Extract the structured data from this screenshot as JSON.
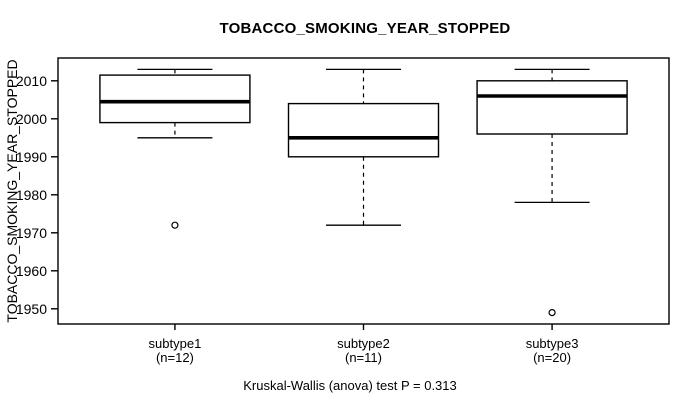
{
  "chart_data": {
    "type": "boxplot",
    "title": "TOBACCO_SMOKING_YEAR_STOPPED",
    "ylabel": "TOBACCO_SMOKING_YEAR_STOPPED",
    "footer": "Kruskal-Wallis (anova) test P = 0.313",
    "ylim": [
      1946,
      2016
    ],
    "y_ticks": [
      1950,
      1960,
      1970,
      1980,
      1990,
      2000,
      2010
    ],
    "grid": false,
    "line_color": "#000000",
    "box_fill": "#ffffff",
    "groups": [
      {
        "label": "subtype1",
        "sublabel": "(n=12)",
        "n": 12,
        "whisker_low": 1995,
        "q1": 1999,
        "median": 2004.5,
        "q3": 2011.5,
        "whisker_high": 2013,
        "outliers": [
          1972
        ]
      },
      {
        "label": "subtype2",
        "sublabel": "(n=11)",
        "n": 11,
        "whisker_low": 1972,
        "q1": 1990,
        "median": 1995,
        "q3": 2004,
        "whisker_high": 2013,
        "outliers": []
      },
      {
        "label": "subtype3",
        "sublabel": "(n=20)",
        "n": 20,
        "whisker_low": 1978,
        "q1": 1996,
        "median": 2006,
        "q3": 2010,
        "whisker_high": 2013,
        "outliers": [
          1949
        ]
      }
    ]
  }
}
